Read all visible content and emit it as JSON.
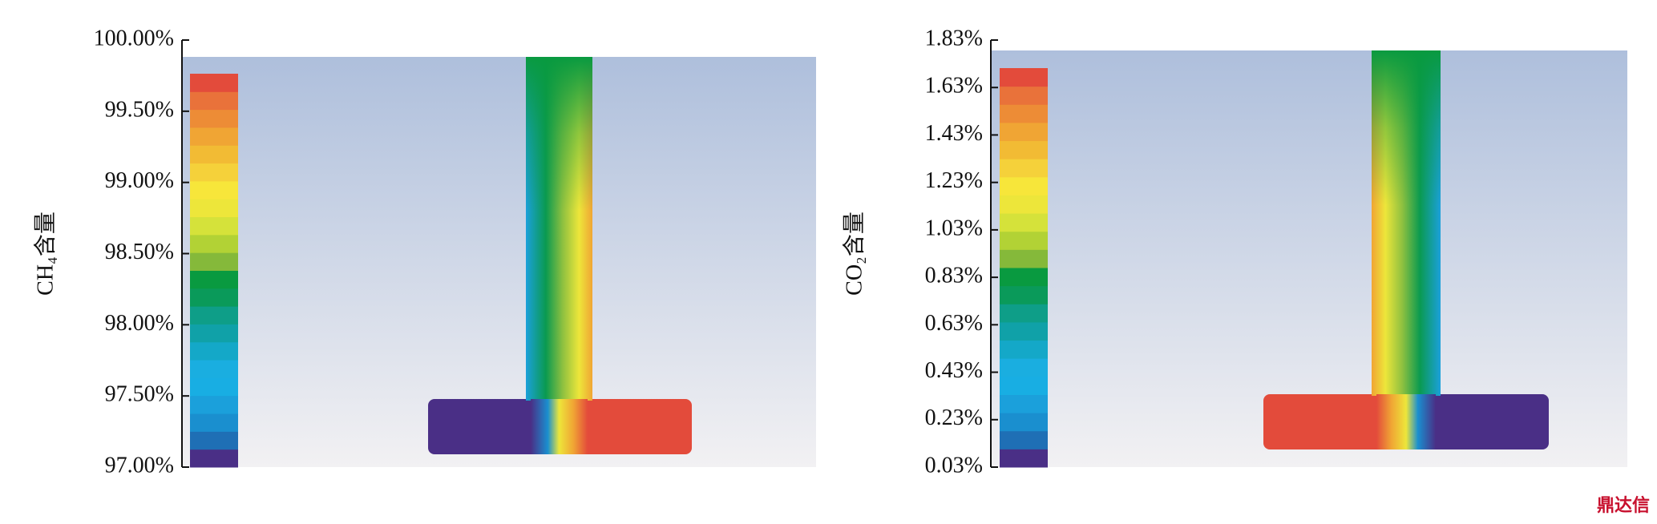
{
  "chart_data": [
    {
      "type": "contour",
      "ylabel": "CH₄含量",
      "ylim": [
        97,
        100
      ],
      "yticks": [
        {
          "value": 100,
          "label": "100.00%"
        },
        {
          "value": 99.5,
          "label": "99.50%"
        },
        {
          "value": 99,
          "label": "99.00%"
        },
        {
          "value": 98.5,
          "label": "98.50%"
        },
        {
          "value": 98,
          "label": "98.00%"
        },
        {
          "value": 97.5,
          "label": "97.50%"
        },
        {
          "value": 97,
          "label": "97.00%"
        }
      ],
      "colormap": [
        "#4a2f86",
        "#1f6fb5",
        "#1a8fcf",
        "#1ba0db",
        "#18aee3",
        "#1aaee0",
        "#14a8c8",
        "#10a1a8",
        "#0e9e88",
        "#0a9a5a",
        "#099a40",
        "#85b93a",
        "#b2d235",
        "#d5e23a",
        "#ede63a",
        "#f7e63a",
        "#f5d13a",
        "#f2bb34",
        "#f0a534",
        "#ed8c36",
        "#e9723a",
        "#e34b3b"
      ]
    },
    {
      "type": "contour",
      "ylabel": "CO₂含量",
      "ylim": [
        0.03,
        1.83
      ],
      "yticks": [
        {
          "value": 1.83,
          "label": "1.83%"
        },
        {
          "value": 1.63,
          "label": "1.63%"
        },
        {
          "value": 1.43,
          "label": "1.43%"
        },
        {
          "value": 1.23,
          "label": "1.23%"
        },
        {
          "value": 1.03,
          "label": "1.03%"
        },
        {
          "value": 0.83,
          "label": "0.83%"
        },
        {
          "value": 0.63,
          "label": "0.63%"
        },
        {
          "value": 0.43,
          "label": "0.43%"
        },
        {
          "value": 0.23,
          "label": "0.23%"
        },
        {
          "value": 0.03,
          "label": "0.03%"
        }
      ],
      "colormap": [
        "#4a2f86",
        "#1f6fb5",
        "#1a8fcf",
        "#1ba0db",
        "#18aee3",
        "#1aaee0",
        "#14a8c8",
        "#10a1a8",
        "#0e9e88",
        "#0a9a5a",
        "#099a40",
        "#85b93a",
        "#b2d235",
        "#d5e23a",
        "#ede63a",
        "#f7e63a",
        "#f5d13a",
        "#f2bb34",
        "#f0a534",
        "#ed8c36",
        "#e9723a",
        "#e34b3b"
      ]
    }
  ],
  "watermark": "鼎达信"
}
